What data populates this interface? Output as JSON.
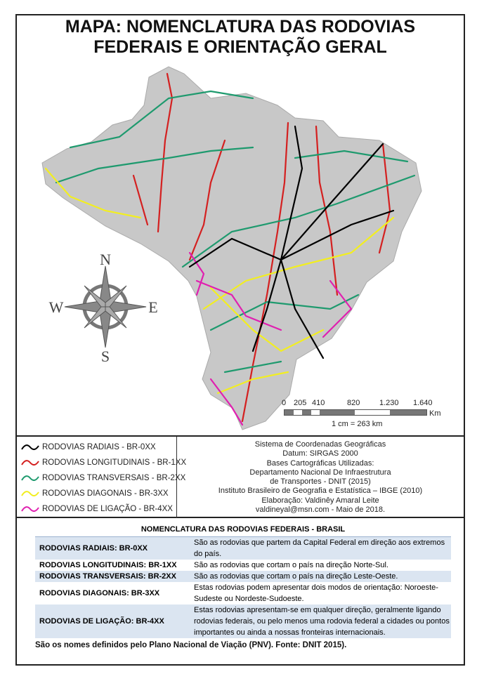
{
  "title": [
    "MAPA: NOMENCLATURA DAS RODOVIAS",
    "FEDERAIS E ORIENTAÇÃO GERAL"
  ],
  "compass": {
    "n": "N",
    "s": "S",
    "e": "E",
    "w": "W"
  },
  "colors": {
    "radial": "#000000",
    "longitudinal": "#d42020",
    "transversal": "#1e9a6e",
    "diagonal": "#f2ee20",
    "ligacao": "#e020b0",
    "land": "#c8c8c8"
  },
  "scale": {
    "ticks": [
      "0",
      "205",
      "410",
      "820",
      "1.230",
      "1.640"
    ],
    "unit": "Km",
    "ratio": "1 cm = 263 km"
  },
  "legend": {
    "items": [
      {
        "label": "RODOVIAS RADIAIS - BR-0XX",
        "color": "#000000"
      },
      {
        "label": "RODOVIAS LONGITUDINAIS - BR-1XX",
        "color": "#d42020"
      },
      {
        "label": "RODOVIAS TRANSVERSAIS - BR-2XX",
        "color": "#1e9a6e"
      },
      {
        "label": "RODOVIAS DIAGONAIS - BR-3XX",
        "color": "#f2ee20"
      },
      {
        "label": "RODOVIAS DE LIGAÇÃO - BR-4XX",
        "color": "#e020b0"
      }
    ],
    "info": [
      "Sistema de Coordenadas Geográficas",
      "Datum: SIRGAS 2000",
      "Bases Cartográficas Utilizadas:",
      "Departamento Nacional De Infraestrutura",
      "de Transportes - DNIT (2015)",
      "Instituto Brasileiro de Geografia e Estatística – IBGE (2010)",
      "Elaboração: Valdinêy Amaral Leite",
      "valdineyal@msn.com - Maio de 2018."
    ]
  },
  "table": {
    "title": "NOMENCLATURA DAS RODOVIAS FEDERAIS - BRASIL",
    "rows": [
      {
        "name": "RODOVIAS RADIAIS: BR-0XX",
        "desc": "São as rodovias que partem da Capital Federal em direção aos extremos do país."
      },
      {
        "name": "RODOVIAS LONGITUDINAIS: BR-1XX",
        "desc": "São as rodovias que cortam o país na direção Norte-Sul."
      },
      {
        "name": "RODOVIAS TRANSVERSAIS: BR-2XX",
        "desc": "São as rodovias que cortam o país na direção Leste-Oeste."
      },
      {
        "name": "RODOVIAS DIAGONAIS: BR-3XX",
        "desc": "Estas rodovias podem apresentar dois modos de orientação: Noroeste-Sudeste ou Nordeste-Sudoeste."
      },
      {
        "name": "RODOVIAS DE LIGAÇÃO: BR-4XX",
        "desc": "Estas rodovias apresentam-se em qualquer direção, geralmente ligando rodovias federais, ou pelo menos uma rodovia federal a cidades ou pontos importantes ou ainda a nossas fronteiras internacionais."
      }
    ]
  },
  "footer": "São os nomes definidos pelo Plano Nacional de Viação (PNV). Fonte: DNIT 2015)."
}
